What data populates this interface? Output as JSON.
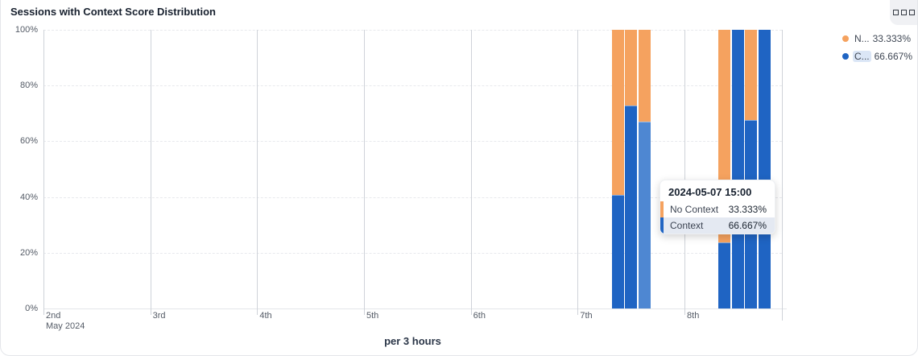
{
  "card": {
    "title": "Sessions with Context Score Distribution",
    "footer_label": "per 3 hours"
  },
  "colors": {
    "context": "#1F64C3",
    "context_highlight": "#4E87D2",
    "no_context": "#F5A25F"
  },
  "legend": {
    "items": [
      {
        "label": "N...",
        "value": "33.333%",
        "color": "#F5A25F",
        "highlighted": false
      },
      {
        "label": "C...",
        "value": "66.667%",
        "color": "#1F64C3",
        "highlighted": true
      }
    ]
  },
  "tooltip": {
    "title": "2024-05-07 15:00",
    "rows": [
      {
        "label": "No Context",
        "value": "33.333%",
        "color": "#F5A25F",
        "highlighted": false
      },
      {
        "label": "Context",
        "value": "66.667%",
        "color": "#1F64C3",
        "highlighted": true
      }
    ]
  },
  "chart_data": {
    "type": "bar",
    "stacked": true,
    "unit": "percent",
    "title": "Sessions with Context Score Distribution",
    "xlabel": "per 3 hours",
    "ylabel": "",
    "ylim": [
      0,
      100
    ],
    "grid": true,
    "legend_position": "top-right",
    "y_ticks": [
      "0%",
      "20%",
      "40%",
      "60%",
      "80%",
      "100%"
    ],
    "x_ticks": [
      {
        "label": "2nd",
        "sub": "May 2024"
      },
      {
        "label": "3rd"
      },
      {
        "label": "4th"
      },
      {
        "label": "5th"
      },
      {
        "label": "6th"
      },
      {
        "label": "7th"
      },
      {
        "label": "8th"
      }
    ],
    "series": [
      {
        "name": "Context",
        "color": "#1F64C3"
      },
      {
        "name": "No Context",
        "color": "#F5A25F"
      }
    ],
    "buckets": [
      {
        "time": "2024-05-07 09:00",
        "day": 7,
        "hour": 9,
        "context": 40.5,
        "no_context": 59.5,
        "highlighted": false
      },
      {
        "time": "2024-05-07 12:00",
        "day": 7,
        "hour": 12,
        "context": 72.5,
        "no_context": 27.5,
        "highlighted": false
      },
      {
        "time": "2024-05-07 15:00",
        "day": 7,
        "hour": 15,
        "context": 66.667,
        "no_context": 33.333,
        "highlighted": true
      },
      {
        "time": "2024-05-08 09:00",
        "day": 8,
        "hour": 9,
        "context": 23.3,
        "no_context": 76.7,
        "highlighted": false
      },
      {
        "time": "2024-05-08 12:00",
        "day": 8,
        "hour": 12,
        "context": 100,
        "no_context": 0,
        "highlighted": false
      },
      {
        "time": "2024-05-08 15:00",
        "day": 8,
        "hour": 15,
        "context": 67.3,
        "no_context": 32.7,
        "highlighted": false
      },
      {
        "time": "2024-05-08 18:00",
        "day": 8,
        "hour": 18,
        "context": 100,
        "no_context": 0,
        "highlighted": false
      }
    ]
  }
}
